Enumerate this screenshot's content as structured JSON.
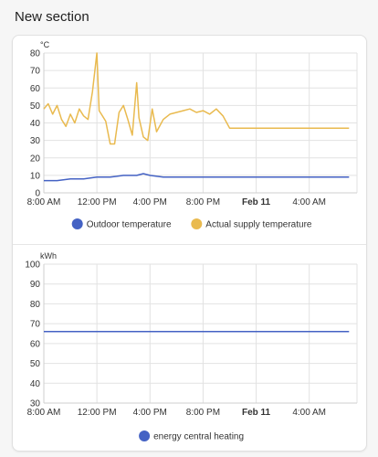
{
  "section": {
    "title": "New section"
  },
  "charts": [
    {
      "name": "temperature-chart",
      "unit": "°C",
      "ylim": [
        0,
        80
      ],
      "yticks": [
        "0",
        "10",
        "20",
        "30",
        "40",
        "50",
        "60",
        "70",
        "80"
      ],
      "xticks": [
        "8:00 AM",
        "12:00 PM",
        "4:00 PM",
        "8:00 PM",
        "Feb 11",
        "4:00 AM"
      ],
      "legend": [
        {
          "label": "Outdoor temperature",
          "color": "#4462c4"
        },
        {
          "label": "Actual supply temperature",
          "color": "#e9ba4f"
        }
      ]
    },
    {
      "name": "energy-chart",
      "unit": "kWh",
      "ylim": [
        30,
        100
      ],
      "yticks": [
        "30",
        "40",
        "50",
        "60",
        "70",
        "80",
        "90",
        "100"
      ],
      "xticks": [
        "8:00 AM",
        "12:00 PM",
        "4:00 PM",
        "8:00 PM",
        "Feb 11",
        "4:00 AM"
      ],
      "legend": [
        {
          "label": "energy central heating",
          "color": "#4462c4"
        }
      ]
    }
  ],
  "chart_data": [
    {
      "type": "line",
      "unit": "°C",
      "ylim": [
        0,
        80
      ],
      "x_hours_from_8am_ticks": [
        "8:00 AM",
        "12:00 PM",
        "4:00 PM",
        "8:00 PM",
        "Feb 11",
        "4:00 AM"
      ],
      "legend_position": "bottom",
      "grid": true,
      "series": [
        {
          "name": "Outdoor temperature",
          "color": "#4462c4",
          "x": [
            "8:00 AM",
            "9:00 AM",
            "10:00 AM",
            "11:00 AM",
            "12:00 PM",
            "1:00 PM",
            "2:00 PM",
            "3:00 PM",
            "3:30 PM",
            "4:00 PM",
            "5:00 PM",
            "8:00 PM",
            "12:00 AM",
            "4:00 AM",
            "7:00 AM"
          ],
          "y": [
            7,
            7,
            8,
            8,
            9,
            9,
            10,
            10,
            11,
            10,
            9,
            9,
            9,
            9,
            9
          ]
        },
        {
          "name": "Actual supply temperature",
          "color": "#e9ba4f",
          "x": [
            "8:00 AM",
            "8:20 AM",
            "8:40 AM",
            "9:00 AM",
            "9:20 AM",
            "9:40 AM",
            "10:00 AM",
            "10:20 AM",
            "10:40 AM",
            "11:00 AM",
            "11:20 AM",
            "11:40 AM",
            "12:00 PM",
            "12:10 PM",
            "12:20 PM",
            "12:40 PM",
            "1:00 PM",
            "1:20 PM",
            "1:40 PM",
            "2:00 PM",
            "2:20 PM",
            "2:40 PM",
            "3:00 PM",
            "3:10 PM",
            "3:30 PM",
            "3:50 PM",
            "4:10 PM",
            "4:30 PM",
            "5:00 PM",
            "5:30 PM",
            "6:00 PM",
            "6:30 PM",
            "7:00 PM",
            "7:30 PM",
            "8:00 PM",
            "8:30 PM",
            "9:00 PM",
            "9:30 PM",
            "10:00 PM",
            "12:00 AM",
            "4:00 AM",
            "7:00 AM"
          ],
          "y": [
            48,
            51,
            45,
            50,
            42,
            38,
            45,
            40,
            48,
            44,
            42,
            58,
            80,
            47,
            45,
            41,
            28,
            28,
            46,
            50,
            42,
            33,
            63,
            43,
            32,
            30,
            48,
            35,
            42,
            45,
            46,
            47,
            48,
            46,
            47,
            45,
            48,
            44,
            37,
            37,
            37,
            37
          ]
        }
      ]
    },
    {
      "type": "line",
      "unit": "kWh",
      "ylim": [
        30,
        100
      ],
      "legend_position": "bottom",
      "grid": true,
      "series": [
        {
          "name": "energy central heating",
          "color": "#4462c4",
          "x": [
            "8:00 AM",
            "7:00 AM"
          ],
          "y": [
            66,
            66
          ]
        }
      ]
    }
  ]
}
